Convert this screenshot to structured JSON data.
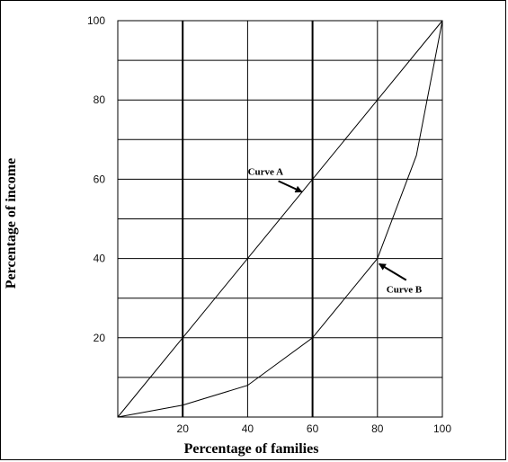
{
  "chart_data": {
    "type": "line",
    "xlabel": "Percentage of families",
    "ylabel": "Percentage of income",
    "xlim": [
      0,
      100
    ],
    "ylim": [
      0,
      100
    ],
    "x_ticks": [
      "20",
      "40",
      "60",
      "80",
      "100"
    ],
    "y_ticks": [
      "20",
      "40",
      "60",
      "80",
      "100"
    ],
    "grid": true,
    "series": [
      {
        "name": "Curve A",
        "x": [
          0,
          20,
          40,
          60,
          80,
          100
        ],
        "y": [
          0,
          20,
          40,
          60,
          80,
          100
        ]
      },
      {
        "name": "Curve B",
        "x": [
          0,
          20,
          40,
          60,
          80,
          92,
          100
        ],
        "y": [
          0,
          3,
          8,
          20,
          40,
          66,
          100
        ]
      }
    ],
    "annotations": [
      {
        "text": "Curve A",
        "x": 60,
        "y": 60
      },
      {
        "text": "Curve B",
        "x": 80,
        "y": 40
      }
    ],
    "colors": {
      "line": "#000000",
      "grid": "#000000"
    }
  }
}
